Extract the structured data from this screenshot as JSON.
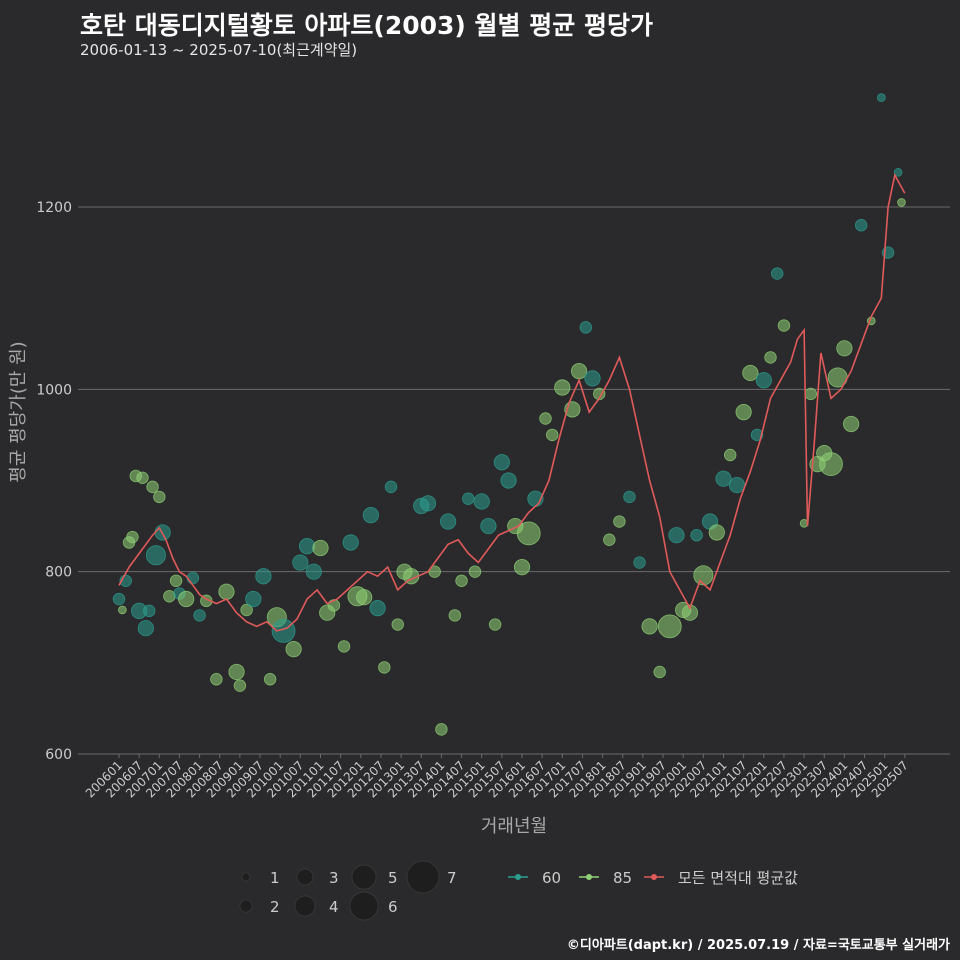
{
  "page": {
    "title": "호탄 대동디지털황토 아파트(2003) 월별 평균 평당가",
    "subtitle": "2006-01-13 ~ 2025-07-10(최근계약일)",
    "footer": "©디아파트(dapt.kr) / 2025.07.19 / 자료=국토교통부 실거래가"
  },
  "colors": {
    "background": "#2a2a2c",
    "grid": "#6a6a6a",
    "area60": "#2a9d8f",
    "area85": "#8fd175",
    "average": "#e05a5a",
    "text": "#cccccc"
  },
  "chart_data": {
    "type": "scatter",
    "title": "호탄 대동디지털황토 아파트(2003) 월별 평균 평당가",
    "xlabel": "거래년월",
    "ylabel": "평균 평당가(만 원)",
    "ylim": [
      600,
      1330
    ],
    "yticks": [
      600,
      800,
      1000,
      1200
    ],
    "grid": true,
    "xticks": [
      "200601",
      "200607",
      "200701",
      "200707",
      "200801",
      "200807",
      "200901",
      "200907",
      "201001",
      "201007",
      "201101",
      "201107",
      "201201",
      "201207",
      "201301",
      "201307",
      "201401",
      "201407",
      "201501",
      "201507",
      "201601",
      "201607",
      "201701",
      "201707",
      "201801",
      "201807",
      "201901",
      "201907",
      "202001",
      "202007",
      "202101",
      "202107",
      "202201",
      "202207",
      "202301",
      "202307",
      "202401",
      "202407",
      "202501",
      "202507"
    ],
    "size_legend": {
      "title": "",
      "values": [
        1,
        2,
        3,
        4,
        5,
        6,
        7
      ]
    },
    "series_legend": [
      "60",
      "85",
      "모든 면적대 평균값"
    ],
    "average_line": {
      "name": "모든 면적대 평균값",
      "x": [
        "2006-01",
        "2006-04",
        "2006-07",
        "2006-09",
        "2006-11",
        "2007-01",
        "2007-03",
        "2007-05",
        "2007-07",
        "2007-09",
        "2007-11",
        "2008-01",
        "2008-03",
        "2008-06",
        "2008-09",
        "2008-12",
        "2009-03",
        "2009-06",
        "2009-09",
        "2009-12",
        "2010-03",
        "2010-06",
        "2010-09",
        "2010-12",
        "2011-03",
        "2011-06",
        "2011-09",
        "2011-12",
        "2012-03",
        "2012-06",
        "2012-09",
        "2012-12",
        "2013-03",
        "2013-06",
        "2013-09",
        "2013-12",
        "2014-03",
        "2014-06",
        "2014-09",
        "2014-12",
        "2015-03",
        "2015-06",
        "2015-09",
        "2015-12",
        "2016-03",
        "2016-06",
        "2016-09",
        "2016-12",
        "2017-03",
        "2017-06",
        "2017-09",
        "2017-12",
        "2018-03",
        "2018-06",
        "2018-09",
        "2018-12",
        "2019-03",
        "2019-06",
        "2019-09",
        "2019-12",
        "2020-03",
        "2020-06",
        "2020-09",
        "2020-12",
        "2021-03",
        "2021-06",
        "2021-09",
        "2021-12",
        "2022-03",
        "2022-06",
        "2022-09",
        "2022-11",
        "2023-01",
        "2023-02",
        "2023-04",
        "2023-06",
        "2023-09",
        "2023-12",
        "2024-03",
        "2024-06",
        "2024-09",
        "2024-12",
        "2025-02",
        "2025-04",
        "2025-07"
      ],
      "y": [
        785,
        805,
        820,
        830,
        840,
        848,
        835,
        815,
        800,
        795,
        785,
        775,
        770,
        765,
        770,
        755,
        745,
        740,
        745,
        735,
        738,
        748,
        770,
        780,
        765,
        770,
        780,
        790,
        800,
        795,
        805,
        780,
        790,
        795,
        800,
        815,
        830,
        835,
        820,
        810,
        825,
        840,
        845,
        850,
        865,
        875,
        900,
        945,
        985,
        1010,
        975,
        990,
        1010,
        1035,
        1000,
        950,
        900,
        860,
        800,
        780,
        760,
        790,
        780,
        810,
        840,
        880,
        910,
        945,
        990,
        1010,
        1030,
        1055,
        1065,
        850,
        940,
        1040,
        990,
        1000,
        1020,
        1050,
        1080,
        1100,
        1200,
        1235,
        1215
      ]
    },
    "points": [
      {
        "x": "2006-01",
        "y": 770,
        "series": "60",
        "size": 2
      },
      {
        "x": "2006-02",
        "y": 758,
        "series": "85",
        "size": 1
      },
      {
        "x": "2006-03",
        "y": 790,
        "series": "60",
        "size": 2
      },
      {
        "x": "2006-04",
        "y": 832,
        "series": "85",
        "size": 2
      },
      {
        "x": "2006-05",
        "y": 838,
        "series": "85",
        "size": 2
      },
      {
        "x": "2006-06",
        "y": 905,
        "series": "85",
        "size": 2
      },
      {
        "x": "2006-07",
        "y": 757,
        "series": "60",
        "size": 3
      },
      {
        "x": "2006-08",
        "y": 903,
        "series": "85",
        "size": 2
      },
      {
        "x": "2006-09",
        "y": 738,
        "series": "60",
        "size": 3
      },
      {
        "x": "2006-10",
        "y": 757,
        "series": "60",
        "size": 2
      },
      {
        "x": "2006-11",
        "y": 893,
        "series": "85",
        "size": 2
      },
      {
        "x": "2006-12",
        "y": 818,
        "series": "60",
        "size": 4
      },
      {
        "x": "2007-01",
        "y": 882,
        "series": "85",
        "size": 2
      },
      {
        "x": "2007-02",
        "y": 843,
        "series": "60",
        "size": 3
      },
      {
        "x": "2007-04",
        "y": 773,
        "series": "85",
        "size": 2
      },
      {
        "x": "2007-06",
        "y": 790,
        "series": "85",
        "size": 2
      },
      {
        "x": "2007-07",
        "y": 776,
        "series": "60",
        "size": 2
      },
      {
        "x": "2007-09",
        "y": 770,
        "series": "85",
        "size": 3
      },
      {
        "x": "2007-11",
        "y": 793,
        "series": "60",
        "size": 2
      },
      {
        "x": "2008-01",
        "y": 752,
        "series": "60",
        "size": 2
      },
      {
        "x": "2008-03",
        "y": 768,
        "series": "85",
        "size": 2
      },
      {
        "x": "2008-06",
        "y": 682,
        "series": "85",
        "size": 2
      },
      {
        "x": "2008-09",
        "y": 778,
        "series": "85",
        "size": 3
      },
      {
        "x": "2008-12",
        "y": 690,
        "series": "85",
        "size": 3
      },
      {
        "x": "2009-01",
        "y": 675,
        "series": "85",
        "size": 2
      },
      {
        "x": "2009-03",
        "y": 758,
        "series": "85",
        "size": 2
      },
      {
        "x": "2009-05",
        "y": 770,
        "series": "60",
        "size": 3
      },
      {
        "x": "2009-08",
        "y": 795,
        "series": "60",
        "size": 3
      },
      {
        "x": "2009-10",
        "y": 682,
        "series": "85",
        "size": 2
      },
      {
        "x": "2009-12",
        "y": 750,
        "series": "85",
        "size": 4
      },
      {
        "x": "2010-02",
        "y": 735,
        "series": "60",
        "size": 5
      },
      {
        "x": "2010-05",
        "y": 715,
        "series": "85",
        "size": 3
      },
      {
        "x": "2010-07",
        "y": 810,
        "series": "60",
        "size": 3
      },
      {
        "x": "2010-09",
        "y": 828,
        "series": "60",
        "size": 3
      },
      {
        "x": "2010-11",
        "y": 800,
        "series": "60",
        "size": 3
      },
      {
        "x": "2011-01",
        "y": 826,
        "series": "85",
        "size": 3
      },
      {
        "x": "2011-03",
        "y": 755,
        "series": "85",
        "size": 3
      },
      {
        "x": "2011-05",
        "y": 763,
        "series": "85",
        "size": 2
      },
      {
        "x": "2011-08",
        "y": 718,
        "series": "85",
        "size": 2
      },
      {
        "x": "2011-10",
        "y": 832,
        "series": "60",
        "size": 3
      },
      {
        "x": "2011-12",
        "y": 773,
        "series": "85",
        "size": 4
      },
      {
        "x": "2012-02",
        "y": 772,
        "series": "85",
        "size": 3
      },
      {
        "x": "2012-04",
        "y": 862,
        "series": "60",
        "size": 3
      },
      {
        "x": "2012-06",
        "y": 760,
        "series": "60",
        "size": 3
      },
      {
        "x": "2012-08",
        "y": 695,
        "series": "85",
        "size": 2
      },
      {
        "x": "2012-10",
        "y": 893,
        "series": "60",
        "size": 2
      },
      {
        "x": "2012-12",
        "y": 742,
        "series": "85",
        "size": 2
      },
      {
        "x": "2013-02",
        "y": 800,
        "series": "85",
        "size": 3
      },
      {
        "x": "2013-04",
        "y": 795,
        "series": "85",
        "size": 3
      },
      {
        "x": "2013-07",
        "y": 872,
        "series": "60",
        "size": 3
      },
      {
        "x": "2013-09",
        "y": 875,
        "series": "60",
        "size": 3
      },
      {
        "x": "2013-11",
        "y": 800,
        "series": "85",
        "size": 2
      },
      {
        "x": "2014-01",
        "y": 627,
        "series": "85",
        "size": 2
      },
      {
        "x": "2014-03",
        "y": 855,
        "series": "60",
        "size": 3
      },
      {
        "x": "2014-05",
        "y": 752,
        "series": "85",
        "size": 2
      },
      {
        "x": "2014-07",
        "y": 790,
        "series": "85",
        "size": 2
      },
      {
        "x": "2014-09",
        "y": 880,
        "series": "60",
        "size": 2
      },
      {
        "x": "2014-11",
        "y": 800,
        "series": "85",
        "size": 2
      },
      {
        "x": "2015-01",
        "y": 877,
        "series": "60",
        "size": 3
      },
      {
        "x": "2015-03",
        "y": 850,
        "series": "60",
        "size": 3
      },
      {
        "x": "2015-05",
        "y": 742,
        "series": "85",
        "size": 2
      },
      {
        "x": "2015-07",
        "y": 920,
        "series": "60",
        "size": 3
      },
      {
        "x": "2015-09",
        "y": 900,
        "series": "60",
        "size": 3
      },
      {
        "x": "2015-11",
        "y": 850,
        "series": "85",
        "size": 3
      },
      {
        "x": "2016-01",
        "y": 805,
        "series": "85",
        "size": 3
      },
      {
        "x": "2016-03",
        "y": 842,
        "series": "85",
        "size": 5
      },
      {
        "x": "2016-05",
        "y": 880,
        "series": "60",
        "size": 3
      },
      {
        "x": "2016-08",
        "y": 968,
        "series": "85",
        "size": 2
      },
      {
        "x": "2016-10",
        "y": 950,
        "series": "85",
        "size": 2
      },
      {
        "x": "2017-01",
        "y": 1002,
        "series": "85",
        "size": 3
      },
      {
        "x": "2017-04",
        "y": 978,
        "series": "85",
        "size": 3
      },
      {
        "x": "2017-06",
        "y": 1020,
        "series": "85",
        "size": 3
      },
      {
        "x": "2017-08",
        "y": 1068,
        "series": "60",
        "size": 2
      },
      {
        "x": "2017-10",
        "y": 1012,
        "series": "60",
        "size": 3
      },
      {
        "x": "2017-12",
        "y": 995,
        "series": "85",
        "size": 2
      },
      {
        "x": "2018-03",
        "y": 835,
        "series": "85",
        "size": 2
      },
      {
        "x": "2018-06",
        "y": 855,
        "series": "85",
        "size": 2
      },
      {
        "x": "2018-09",
        "y": 882,
        "series": "60",
        "size": 2
      },
      {
        "x": "2018-12",
        "y": 810,
        "series": "60",
        "size": 2
      },
      {
        "x": "2019-03",
        "y": 740,
        "series": "85",
        "size": 3
      },
      {
        "x": "2019-06",
        "y": 690,
        "series": "85",
        "size": 2
      },
      {
        "x": "2019-09",
        "y": 740,
        "series": "85",
        "size": 5
      },
      {
        "x": "2019-11",
        "y": 840,
        "series": "60",
        "size": 3
      },
      {
        "x": "2020-01",
        "y": 758,
        "series": "85",
        "size": 3
      },
      {
        "x": "2020-03",
        "y": 755,
        "series": "85",
        "size": 3
      },
      {
        "x": "2020-05",
        "y": 840,
        "series": "60",
        "size": 2
      },
      {
        "x": "2020-07",
        "y": 796,
        "series": "85",
        "size": 4
      },
      {
        "x": "2020-09",
        "y": 855,
        "series": "60",
        "size": 3
      },
      {
        "x": "2020-11",
        "y": 843,
        "series": "85",
        "size": 3
      },
      {
        "x": "2021-01",
        "y": 902,
        "series": "60",
        "size": 3
      },
      {
        "x": "2021-03",
        "y": 928,
        "series": "85",
        "size": 2
      },
      {
        "x": "2021-05",
        "y": 895,
        "series": "60",
        "size": 3
      },
      {
        "x": "2021-07",
        "y": 975,
        "series": "85",
        "size": 3
      },
      {
        "x": "2021-09",
        "y": 1018,
        "series": "85",
        "size": 3
      },
      {
        "x": "2021-11",
        "y": 950,
        "series": "60",
        "size": 2
      },
      {
        "x": "2022-01",
        "y": 1010,
        "series": "60",
        "size": 3
      },
      {
        "x": "2022-03",
        "y": 1035,
        "series": "85",
        "size": 2
      },
      {
        "x": "2022-05",
        "y": 1127,
        "series": "60",
        "size": 2
      },
      {
        "x": "2022-07",
        "y": 1070,
        "series": "85",
        "size": 2
      },
      {
        "x": "2023-01",
        "y": 853,
        "series": "85",
        "size": 1
      },
      {
        "x": "2023-03",
        "y": 995,
        "series": "85",
        "size": 2
      },
      {
        "x": "2023-05",
        "y": 918,
        "series": "85",
        "size": 3
      },
      {
        "x": "2023-07",
        "y": 930,
        "series": "85",
        "size": 3
      },
      {
        "x": "2023-09",
        "y": 918,
        "series": "85",
        "size": 5
      },
      {
        "x": "2023-11",
        "y": 1013,
        "series": "85",
        "size": 4
      },
      {
        "x": "2024-01",
        "y": 1045,
        "series": "85",
        "size": 3
      },
      {
        "x": "2024-03",
        "y": 962,
        "series": "85",
        "size": 3
      },
      {
        "x": "2024-06",
        "y": 1180,
        "series": "60",
        "size": 2
      },
      {
        "x": "2024-09",
        "y": 1075,
        "series": "85",
        "size": 1
      },
      {
        "x": "2024-12",
        "y": 1320,
        "series": "60",
        "size": 1
      },
      {
        "x": "2025-02",
        "y": 1150,
        "series": "60",
        "size": 2
      },
      {
        "x": "2025-05",
        "y": 1238,
        "series": "60",
        "size": 1
      },
      {
        "x": "2025-06",
        "y": 1205,
        "series": "85",
        "size": 1
      }
    ]
  }
}
